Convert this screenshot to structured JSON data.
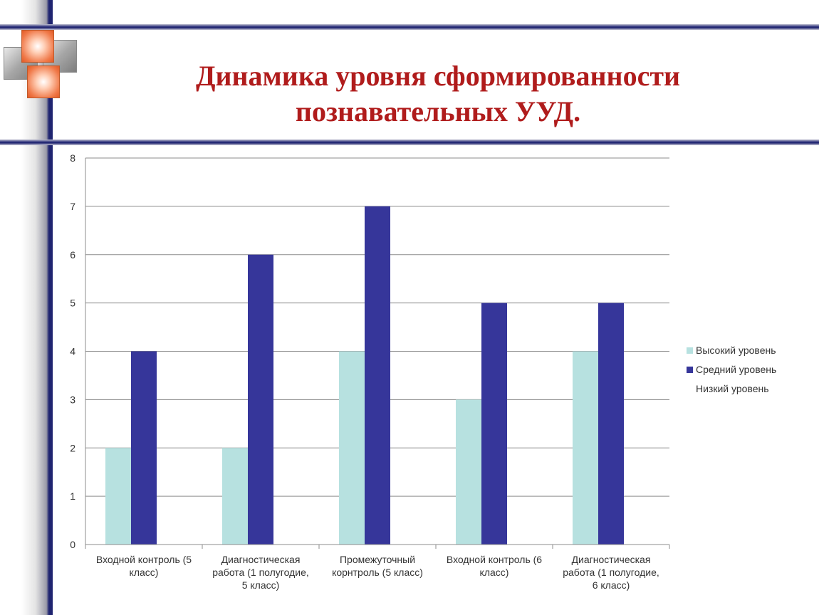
{
  "slide": {
    "title_line1": "Динамика  уровня сформированности",
    "title_line2": "познавательных УУД."
  },
  "colors": {
    "title": "#b01c1c",
    "series_high": "#b7e1e0",
    "series_mid": "#36369a",
    "series_low": "#ffffff",
    "accent_bar": "#1f2470"
  },
  "icons": [
    "decorative-squares-icon"
  ],
  "chart_data": {
    "type": "bar",
    "categories": [
      [
        "Входной контроль (5",
        "класс)"
      ],
      [
        "Диагностическая",
        "работа (1 полугодие,",
        "5 класс)"
      ],
      [
        "Промежуточный",
        "корнтроль (5 класс)"
      ],
      [
        "Входной контроль (6",
        "класс)"
      ],
      [
        "Диагностическая",
        "работа (1 полугодие,",
        "6 класс)"
      ]
    ],
    "series": [
      {
        "name": "Высокий уровень",
        "values": [
          2,
          2,
          4,
          3,
          4
        ]
      },
      {
        "name": "Средний уровень",
        "values": [
          4,
          6,
          7,
          5,
          5
        ]
      },
      {
        "name": "Низкий уровень",
        "values": [
          0,
          0,
          0,
          0,
          0
        ]
      }
    ],
    "yticks": [
      "0",
      "1",
      "2",
      "3",
      "4",
      "5",
      "6",
      "7",
      "8"
    ],
    "ylim": [
      0,
      8
    ],
    "grid": true,
    "legend": "right"
  }
}
